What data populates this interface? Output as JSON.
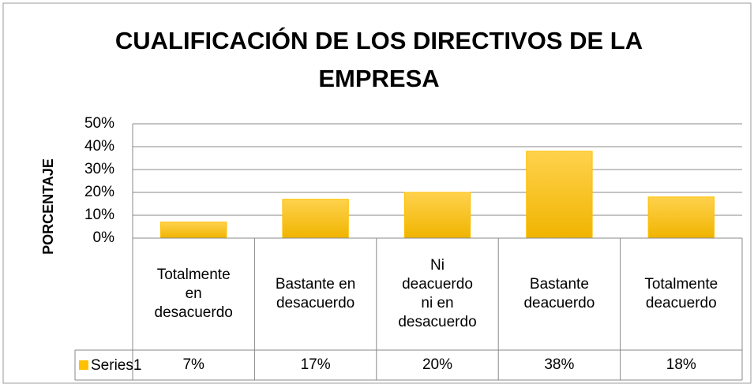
{
  "chart_data": {
    "type": "bar",
    "title": "CUALIFICACIÓN DE LOS DIRECTIVOS DE LA EMPRESA",
    "y_label": "PORCENTAJE",
    "categories": [
      "Totalmente en desacuerdo",
      "Bastante en desacuerdo",
      "Ni deacuerdo ni en desacuerdo",
      "Bastante deacuerdo",
      "Totalmente deacuerdo"
    ],
    "series": [
      {
        "name": "Series1",
        "color": "#ffc000",
        "values": [
          7,
          17,
          20,
          38,
          18
        ],
        "value_labels": [
          "7%",
          "17%",
          "20%",
          "38%",
          "18%"
        ]
      }
    ],
    "ylim": [
      0,
      50
    ],
    "yticks": [
      {
        "value": 0,
        "label": "0%"
      },
      {
        "value": 10,
        "label": "10%"
      },
      {
        "value": 20,
        "label": "20%"
      },
      {
        "value": 30,
        "label": "30%"
      },
      {
        "value": 40,
        "label": "40%"
      },
      {
        "value": 50,
        "label": "50%"
      }
    ],
    "grid": true,
    "data_table": true
  }
}
